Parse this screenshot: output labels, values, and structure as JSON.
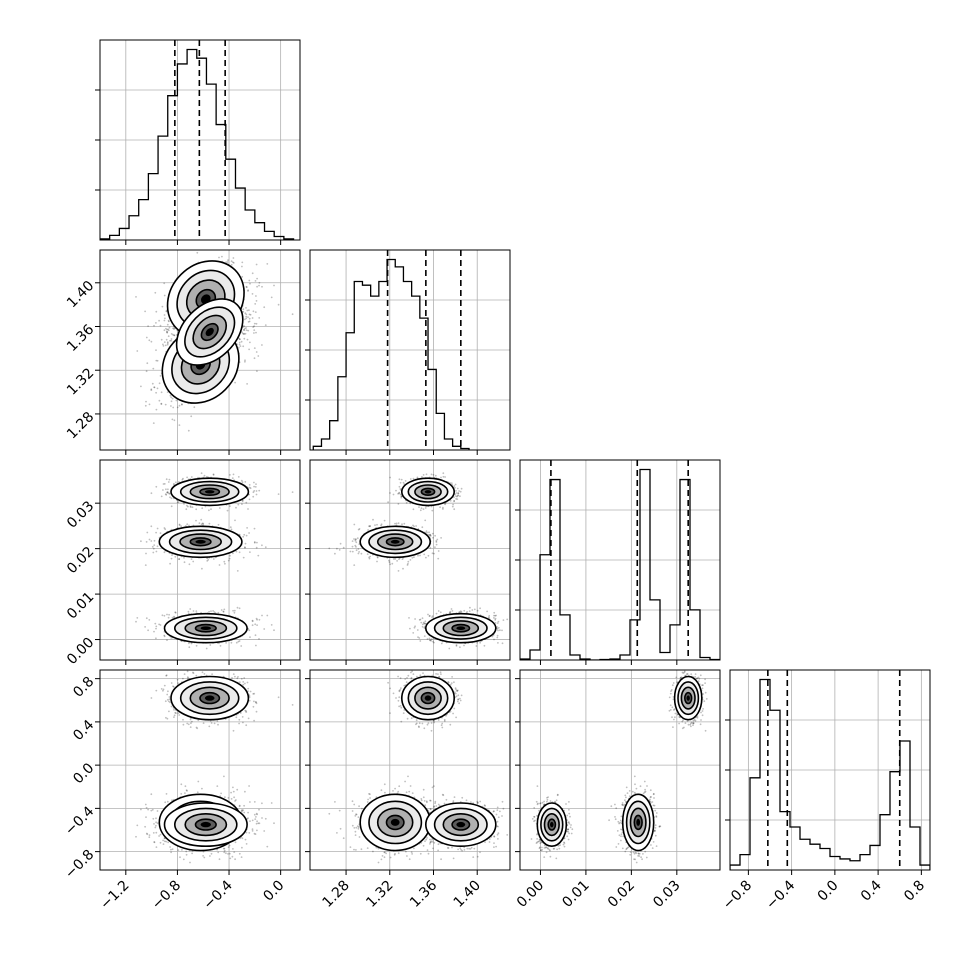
{
  "chart_data": {
    "type": "corner",
    "title": "",
    "parameters": [
      {
        "range": [
          -1.4,
          0.15
        ],
        "ticks": [
          -1.2,
          -0.8,
          -0.4,
          0.0
        ],
        "tick_labels": [
          "−1.2",
          "−0.8",
          "−0.4",
          "0.0"
        ],
        "quantiles": [
          -0.82,
          -0.63,
          -0.43
        ],
        "hist": {
          "edges_start": -1.4,
          "bin_width": 0.075,
          "counts": [
            0.2,
            0.8,
            2.0,
            4.2,
            7.0,
            11.5,
            18.0,
            25.0,
            30.5,
            33.0,
            31.5,
            27.0,
            20.0,
            14.0,
            9.0,
            5.2,
            3.0,
            1.5,
            0.6,
            0.2
          ]
        }
      },
      {
        "range": [
          1.247,
          1.43
        ],
        "ticks": [
          1.28,
          1.32,
          1.36,
          1.4
        ],
        "tick_labels": [
          "1.28",
          "1.32",
          "1.36",
          "1.40"
        ],
        "quantiles": [
          1.318,
          1.353,
          1.385
        ],
        "hist": {
          "edges_start": 1.25,
          "bin_width": 0.0075,
          "counts": [
            0.5,
            1.5,
            4.0,
            10.0,
            16.0,
            23.0,
            22.5,
            21.0,
            23.0,
            26.0,
            25.0,
            23.0,
            21.0,
            18.0,
            11.0,
            5.0,
            1.5,
            0.5,
            0.2
          ]
        }
      },
      {
        "range": [
          -0.0045,
          0.0395
        ],
        "ticks": [
          0.0,
          0.01,
          0.02,
          0.03
        ],
        "tick_labels": [
          "0.00",
          "0.01",
          "0.02",
          "0.03"
        ],
        "quantiles": [
          0.0023,
          0.0213,
          0.0325
        ],
        "hist": {
          "edges_start": -0.0045,
          "bin_width": 0.0022,
          "counts": [
            0.2,
            2.0,
            21.0,
            36.0,
            9.0,
            1.0,
            0.2,
            0.0,
            0.1,
            0.2,
            1.0,
            8.0,
            38.0,
            12.0,
            1.5,
            7.0,
            36.0,
            10.0,
            0.5,
            0.1
          ]
        }
      },
      {
        "range": [
          -0.97,
          0.88
        ],
        "ticks": [
          -0.8,
          -0.4,
          0.0,
          0.4,
          0.8
        ],
        "tick_labels": [
          "−0.8",
          "−0.4",
          "0.0",
          "0.4",
          "0.8"
        ],
        "quantiles": [
          -0.62,
          -0.44,
          0.6
        ],
        "hist": {
          "edges_start": -0.97,
          "bin_width": 0.0925,
          "counts": [
            0.8,
            2.5,
            15.0,
            31.0,
            26.0,
            9.5,
            7.0,
            5.0,
            4.2,
            3.5,
            2.2,
            1.8,
            1.5,
            2.5,
            4.0,
            9.0,
            16.0,
            21.0,
            7.0,
            0.8
          ]
        }
      }
    ],
    "clusters": [
      {
        "center": [
          -0.62,
          1.325,
          0.0215,
          -0.53
        ],
        "sd": [
          0.16,
          0.016,
          0.0017,
          0.13
        ],
        "weight": 0.33
      },
      {
        "center": [
          -0.58,
          1.385,
          0.0025,
          -0.55
        ],
        "sd": [
          0.16,
          0.016,
          0.0016,
          0.1
        ],
        "weight": 0.34
      },
      {
        "center": [
          -0.55,
          1.355,
          0.0325,
          0.62
        ],
        "sd": [
          0.15,
          0.012,
          0.0015,
          0.1
        ],
        "weight": 0.33
      }
    ],
    "grid": true,
    "scatter_color": "#000000",
    "line_color": "#000000"
  }
}
